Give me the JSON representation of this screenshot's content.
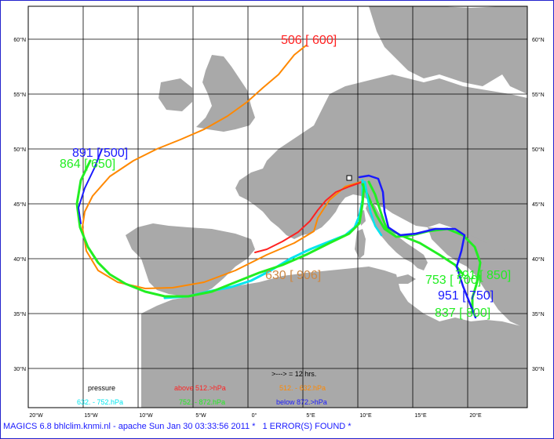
{
  "map": {
    "lat_labels": [
      "60°N",
      "55°N",
      "50°N",
      "45°N",
      "40°N",
      "35°N",
      "30°N"
    ],
    "lon_labels": [
      "20°W",
      "15°W",
      "10°W",
      "5°W",
      "0°",
      "5°E",
      "10°E",
      "15°E",
      "20°E"
    ],
    "tracks": [
      {
        "id": "orange",
        "color": "#ff8800",
        "label": "506 [ 600]",
        "label_color": "#ff2222"
      },
      {
        "id": "blue1",
        "color": "#1a1aff",
        "label": "891 [ 500]",
        "label_color": "#1a1aff"
      },
      {
        "id": "green1",
        "color": "#22ee22",
        "label": "864 [ 650]",
        "label_color": "#22ee22"
      },
      {
        "id": "red",
        "color": "#ff2222",
        "label": "630 [ 906]",
        "label_color": "#cc8844"
      },
      {
        "id": "cyan",
        "color": "#00e5ee",
        "label": "",
        "label_color": ""
      },
      {
        "id": "green2",
        "color": "#22ee22",
        "label": "791 [ 850]",
        "label_color": "#22ee22"
      },
      {
        "id": "green3",
        "color": "#22ee22",
        "label": "753 [ 700]",
        "label_color": "#22ee22"
      },
      {
        "id": "blue2",
        "color": "#1a1aff",
        "label": "951 [ 750]",
        "label_color": "#1a1aff"
      },
      {
        "id": "green4",
        "color": "#22ee22",
        "label": "837 [ 800]",
        "label_color": "#22ee22"
      }
    ],
    "legend": {
      "interval": ">---> = 12 hrs.",
      "pressure_label": "pressure",
      "items": [
        {
          "text": "above   512.>hPa",
          "color": "#ff2222"
        },
        {
          "text": "512. -   632.hPa",
          "color": "#ff8800"
        },
        {
          "text": "632. -   752.hPa",
          "color": "#00e5ee"
        },
        {
          "text": "752. -   872.hPa",
          "color": "#22ee22"
        },
        {
          "text": "below   872.>hPa",
          "color": "#1a1aff"
        }
      ]
    }
  },
  "footer": {
    "left": "MAGICS 6.8 bhlclim.knmi.nl - apache Sun Jan 30 03:33:56 2011 *",
    "right": "1 ERROR(S) FOUND *"
  },
  "colors": {
    "land": "#a9a9a9",
    "sea": "#ffffff",
    "grid": "#000000",
    "frame": "#2222cc"
  }
}
